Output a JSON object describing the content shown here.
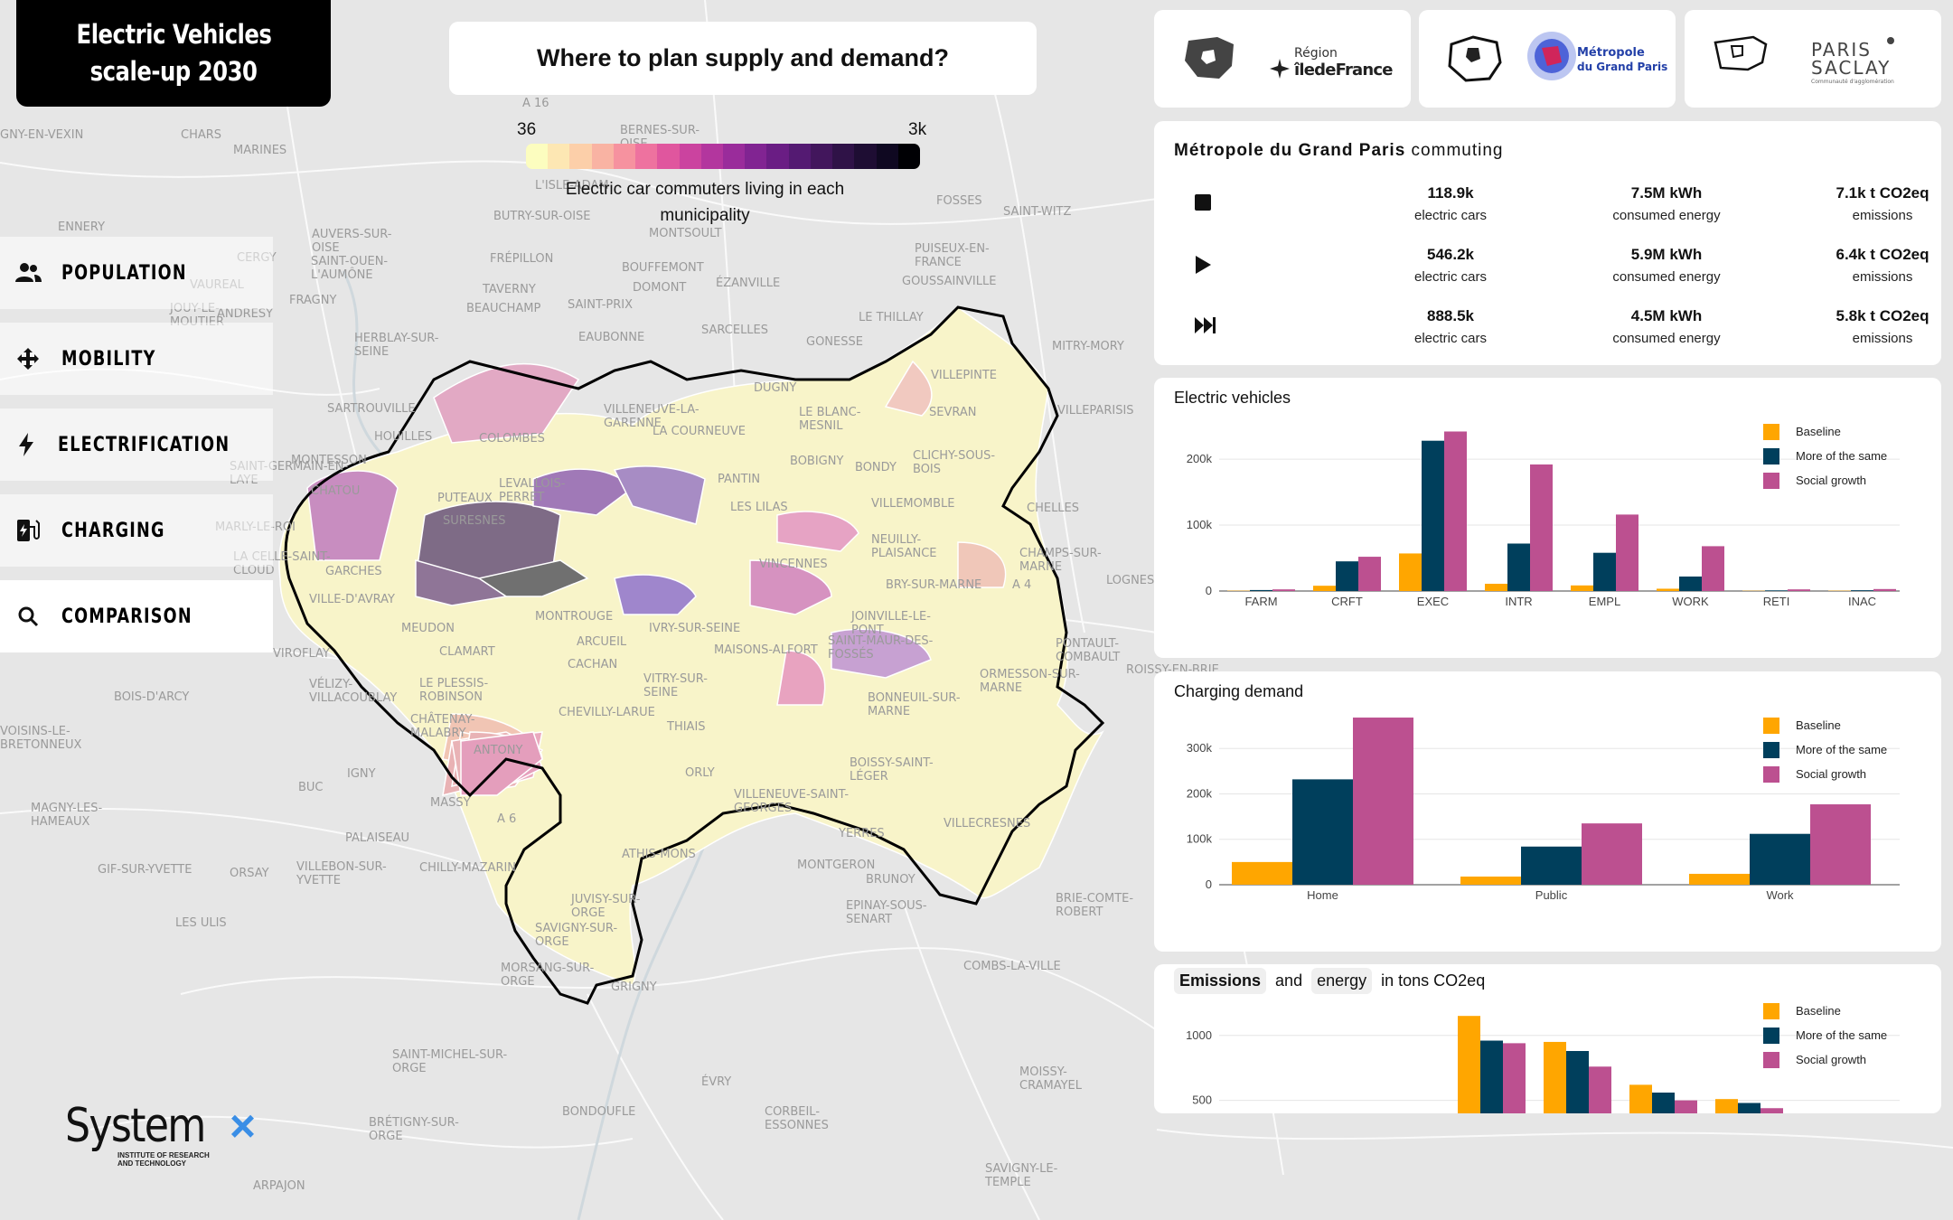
{
  "title": {
    "line1": "Electric Vehicles",
    "line2": "scale-up 2030"
  },
  "question": "Where to plan supply and demand?",
  "legend": {
    "min_label": "36",
    "max_label": "3k",
    "caption_line1": "Electric car commuters living in each",
    "caption_line2": "municipality",
    "colors": [
      "#fcfdbf",
      "#fde7b3",
      "#fccfa9",
      "#f9b3a3",
      "#f6929f",
      "#ee729f",
      "#e0569e",
      "#cb439f",
      "#b3369e",
      "#9a2c9b",
      "#812492",
      "#6a1d84",
      "#541a72",
      "#42165c",
      "#2f1247",
      "#1e0d33",
      "#0f0821",
      "#000004"
    ]
  },
  "nav": [
    {
      "label": "POPULATION",
      "icon": "population-icon"
    },
    {
      "label": "MOBILITY",
      "icon": "move-arrows-icon"
    },
    {
      "label": "ELECTRIFICATION",
      "icon": "lightning-icon"
    },
    {
      "label": "CHARGING",
      "icon": "charging-station-icon"
    },
    {
      "label": "COMPARISON",
      "icon": "search-icon"
    }
  ],
  "logos": {
    "region": {
      "line1": "Région",
      "line2": "îledeFrance"
    },
    "metropole": {
      "line1": "Métropole",
      "line2": "du Grand Paris"
    },
    "saclay": {
      "line1": "PARIS",
      "line2": "SACLAY",
      "tag": "Communauté d'agglomération"
    }
  },
  "commuting": {
    "title_bold": "Métropole du Grand Paris",
    "title_rest": " commuting",
    "rows": [
      {
        "icon": "stop-icon",
        "cars": "118.9k",
        "cars_label": "electric cars",
        "energy": "7.5M kWh",
        "energy_label": "consumed energy",
        "emissions": "7.1k t CO2eq",
        "emissions_label": "emissions"
      },
      {
        "icon": "play-icon",
        "cars": "546.2k",
        "cars_label": "electric cars",
        "energy": "5.9M kWh",
        "energy_label": "consumed energy",
        "emissions": "6.4k t CO2eq",
        "emissions_label": "emissions"
      },
      {
        "icon": "fast-forward-icon",
        "cars": "888.5k",
        "cars_label": "electric cars",
        "energy": "4.5M kWh",
        "energy_label": "consumed energy",
        "emissions": "5.8k t CO2eq",
        "emissions_label": "emissions"
      }
    ]
  },
  "series_colors": [
    "#ffa600",
    "#003f5c",
    "#bc5090"
  ],
  "series_names": [
    "Baseline",
    "More of the same",
    "Social growth"
  ],
  "charts": {
    "ev": {
      "title": "Electric vehicles",
      "chart_data": {
        "type": "bar",
        "categories": [
          "FARM",
          "CRFT",
          "EXEC",
          "INTR",
          "EMPL",
          "WORK",
          "RETI",
          "INAC"
        ],
        "series": [
          {
            "name": "Baseline",
            "values": [
              500,
              8000,
              57000,
              11000,
              8500,
              3500,
              400,
              500
            ]
          },
          {
            "name": "More of the same",
            "values": [
              1500,
              45000,
              228000,
              72000,
              58000,
              22000,
              1000,
              1200
            ]
          },
          {
            "name": "Social growth",
            "values": [
              2500,
              52000,
              242000,
              192000,
              116000,
              68000,
              2500,
              3000
            ]
          }
        ],
        "yticks": [
          "0",
          "100k",
          "200k"
        ],
        "ytick_values": [
          0,
          100000,
          200000
        ],
        "ylim": [
          0,
          255000
        ]
      }
    },
    "charging": {
      "title": "Charging demand",
      "chart_data": {
        "type": "bar",
        "categories": [
          "Home",
          "Public",
          "Work"
        ],
        "series": [
          {
            "name": "Baseline",
            "values": [
              50000,
              18000,
              24000
            ]
          },
          {
            "name": "More of the same",
            "values": [
              232000,
              84000,
              112000
            ]
          },
          {
            "name": "Social growth",
            "values": [
              368000,
              135000,
              177000
            ]
          }
        ],
        "yticks": [
          "0",
          "100k",
          "200k",
          "300k"
        ],
        "ytick_values": [
          0,
          100000,
          200000,
          300000
        ],
        "ylim": [
          0,
          380000
        ]
      }
    },
    "emissions": {
      "title_pill1": "Emissions",
      "title_and": "and",
      "title_pill2": "energy",
      "title_rest": "in tons CO2eq",
      "chart_data": {
        "type": "bar",
        "categories": [
          "",
          "",
          "",
          ""
        ],
        "series": [
          {
            "name": "Baseline",
            "values": [
              1150,
              950,
              620,
              510
            ]
          },
          {
            "name": "More of the same",
            "values": [
              960,
              880,
              560,
              480
            ]
          },
          {
            "name": "Social growth",
            "values": [
              940,
              760,
              500,
              440
            ]
          }
        ],
        "yticks": [
          "500",
          "1000"
        ],
        "ytick_values": [
          500,
          1000
        ],
        "ylim": [
          400,
          1200
        ]
      }
    }
  },
  "systemx": {
    "word": "System",
    "x": "×",
    "tag1": "INSTITUTE OF RESEARCH",
    "tag2": "AND TECHNOLOGY"
  },
  "map": {
    "places": [
      "GNY-EN-VEXIN",
      "CHARS",
      "MARINES",
      "A 16",
      "BERNES-SUR-OISE",
      "L'ISLE-ADAM",
      "BUTRY-SUR-OISE",
      "MONTSOULT",
      "FOSSES",
      "SAINT-WITZ",
      "ENNERY",
      "AUVERS-SUR-OISE",
      "FRÉPILLON",
      "PUISEUX-EN-FRANCE",
      "CERGY",
      "SAINT-OUEN-L'AUMÔNE",
      "TAVERNY",
      "BOUFFEMONT",
      "DOMONT",
      "ÉZANVILLE",
      "GOUSSAINVILLE",
      "VAUREAL",
      "FRAGNY",
      "BEAUCHAMP",
      "SAINT-PRIX",
      "JOUY-LE-MOUTIER",
      "ANDRESY",
      "HERBLAY-SUR-SEINE",
      "EAUBONNE",
      "SARCELLES",
      "GONESSE",
      "LE THILLAY",
      "MITRY-MORY",
      "VILLEPINTE",
      "SARTROUVILLE",
      "HOUILLES",
      "COLOMBES",
      "VILLENEUVE-LA-GARENNE",
      "LA COURNEUVE",
      "DUGNY",
      "LE BLANC-MESNIL",
      "SEVRAN",
      "VILLEPARISIS",
      "SAINT-GERMAIN-EN-LAYE",
      "MONTESSON",
      "CHATOU",
      "LEVALLOIS-PERRET",
      "PANTIN",
      "BOBIGNY",
      "BONDY",
      "CLICHY-SOUS-BOIS",
      "CHELLES",
      "MARLY-LE-ROI",
      "SURESNES",
      "PUTEAUX",
      "LES LILAS",
      "VILLEMOMBLE",
      "NEUILLY-PLAISANCE",
      "LA CELLE-SAINT-CLOUD",
      "GARCHES",
      "VINCENNES",
      "BRY-SUR-MARNE",
      "CHAMPS-SUR-MARNE",
      "LOGNES",
      "VILLE-D'AVRAY",
      "MONTROUGE",
      "JOINVILLE-LE-PONT",
      "MEUDON",
      "ARCUEIL",
      "IVRY-SUR-SEINE",
      "SAINT-MAUR-DES-FOSSÉS",
      "CLAMART",
      "CACHAN",
      "MAISONS-ALFORT",
      "VIROFLAY",
      "VÉLIZY-VILLACOUBLAY",
      "LE PLESSIS-ROBINSON",
      "VITRY-SUR-SEINE",
      "ORMESSON-SUR-MARNE",
      "CHÂTENAY-MALABRY",
      "CHEVILLY-LARUE",
      "THIAIS",
      "BONNEUIL-SUR-MARNE",
      "ANTONY",
      "BOIS-D'ARCY",
      "VOISINS-LE-BRETONNEUX",
      "IGNY",
      "ORLY",
      "BOISSY-SAINT-LÉGER",
      "MASSY",
      "VILLENEUVE-SAINT-GEORGES",
      "MAGNY-LES-HAMEAUX",
      "VILLECRESNES",
      "PALAISEAU",
      "YERRES",
      "BUC",
      "GIF-SUR-YVETTE",
      "ORSAY",
      "VILLEBON-SUR-YVETTE",
      "CHILLY-MAZARIN",
      "ATHIS-MONS",
      "MONTGERON",
      "BRUNOY",
      "EPINAY-SOUS-SENART",
      "BRIE-COMTE-ROBERT",
      "LES ULIS",
      "JUVISY-SUR-ORGE",
      "SAVIGNY-SUR-ORGE",
      "MORSANG-SUR-ORGE",
      "GRIGNY",
      "COMBS-LA-VILLE",
      "SAINT-MICHEL-SUR-ORGE",
      "MOISSY-CRAMAYEL",
      "ÉVRY",
      "BRÉTIGNY-SUR-ORGE",
      "BONDOUFLE",
      "CORBEIL-ESSONNES",
      "ARPAJON",
      "SAVIGNY-LE-TEMPLE",
      "A 6",
      "A 4",
      "PONTAULT-COMBAULT",
      "ROISSY-EN-BRIE"
    ]
  }
}
